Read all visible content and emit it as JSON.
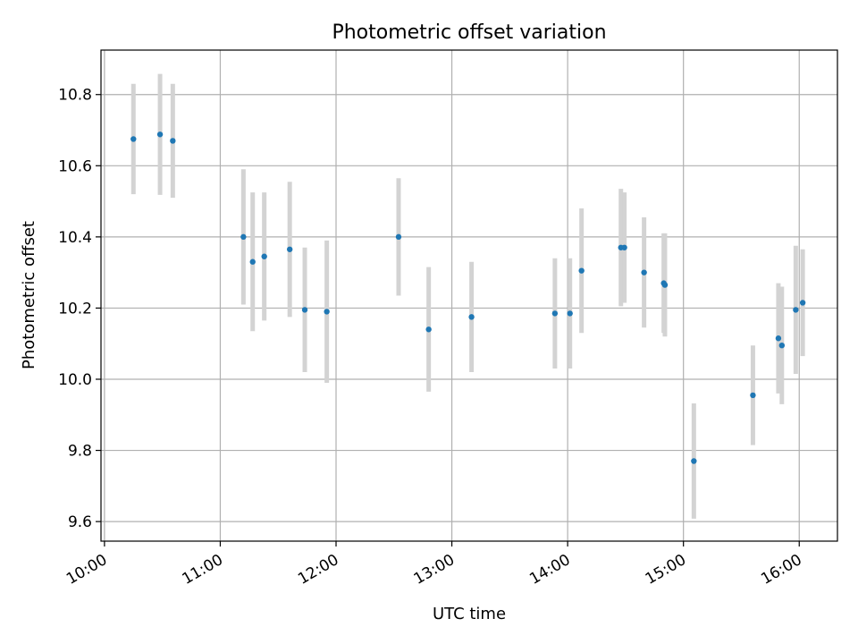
{
  "chart_data": {
    "type": "scatter",
    "title": "Photometric offset variation",
    "xlabel": "UTC time",
    "ylabel": "Photometric offset",
    "x_unit": "hours UTC",
    "xlim": [
      9.97,
      16.33
    ],
    "ylim": [
      9.545,
      10.925
    ],
    "x_ticks": [
      {
        "value": 10,
        "label": "10:00"
      },
      {
        "value": 11,
        "label": "11:00"
      },
      {
        "value": 12,
        "label": "12:00"
      },
      {
        "value": 13,
        "label": "13:00"
      },
      {
        "value": 14,
        "label": "14:00"
      },
      {
        "value": 15,
        "label": "15:00"
      },
      {
        "value": 16,
        "label": "16:00"
      }
    ],
    "y_ticks": [
      {
        "value": 9.6,
        "label": "9.6"
      },
      {
        "value": 9.8,
        "label": "9.8"
      },
      {
        "value": 10.0,
        "label": "10.0"
      },
      {
        "value": 10.2,
        "label": "10.2"
      },
      {
        "value": 10.4,
        "label": "10.4"
      },
      {
        "value": 10.6,
        "label": "10.6"
      },
      {
        "value": 10.8,
        "label": "10.8"
      }
    ],
    "grid": true,
    "colors": {
      "marker": "#1f77b4",
      "errorbar": "#d3d3d3",
      "grid": "#b0b0b0"
    },
    "points": [
      {
        "x": 10.25,
        "y": 10.675,
        "err": 0.155
      },
      {
        "x": 10.48,
        "y": 10.688,
        "err": 0.17
      },
      {
        "x": 10.59,
        "y": 10.67,
        "err": 0.16
      },
      {
        "x": 11.2,
        "y": 10.4,
        "err": 0.19
      },
      {
        "x": 11.28,
        "y": 10.33,
        "err": 0.195
      },
      {
        "x": 11.38,
        "y": 10.345,
        "err": 0.18
      },
      {
        "x": 11.6,
        "y": 10.365,
        "err": 0.19
      },
      {
        "x": 11.73,
        "y": 10.195,
        "err": 0.175
      },
      {
        "x": 11.92,
        "y": 10.19,
        "err": 0.2
      },
      {
        "x": 12.54,
        "y": 10.4,
        "err": 0.165
      },
      {
        "x": 12.8,
        "y": 10.14,
        "err": 0.175
      },
      {
        "x": 13.17,
        "y": 10.175,
        "err": 0.155
      },
      {
        "x": 13.89,
        "y": 10.185,
        "err": 0.155
      },
      {
        "x": 14.02,
        "y": 10.185,
        "err": 0.155
      },
      {
        "x": 14.12,
        "y": 10.305,
        "err": 0.175
      },
      {
        "x": 14.46,
        "y": 10.37,
        "err": 0.165
      },
      {
        "x": 14.49,
        "y": 10.37,
        "err": 0.155
      },
      {
        "x": 14.66,
        "y": 10.3,
        "err": 0.155
      },
      {
        "x": 14.83,
        "y": 10.27,
        "err": 0.14
      },
      {
        "x": 14.84,
        "y": 10.265,
        "err": 0.145
      },
      {
        "x": 15.09,
        "y": 9.77,
        "err": 0.162
      },
      {
        "x": 15.6,
        "y": 9.955,
        "err": 0.14
      },
      {
        "x": 15.82,
        "y": 10.115,
        "err": 0.155
      },
      {
        "x": 15.85,
        "y": 10.095,
        "err": 0.165
      },
      {
        "x": 15.97,
        "y": 10.195,
        "err": 0.18
      },
      {
        "x": 16.03,
        "y": 10.215,
        "err": 0.15
      }
    ]
  }
}
